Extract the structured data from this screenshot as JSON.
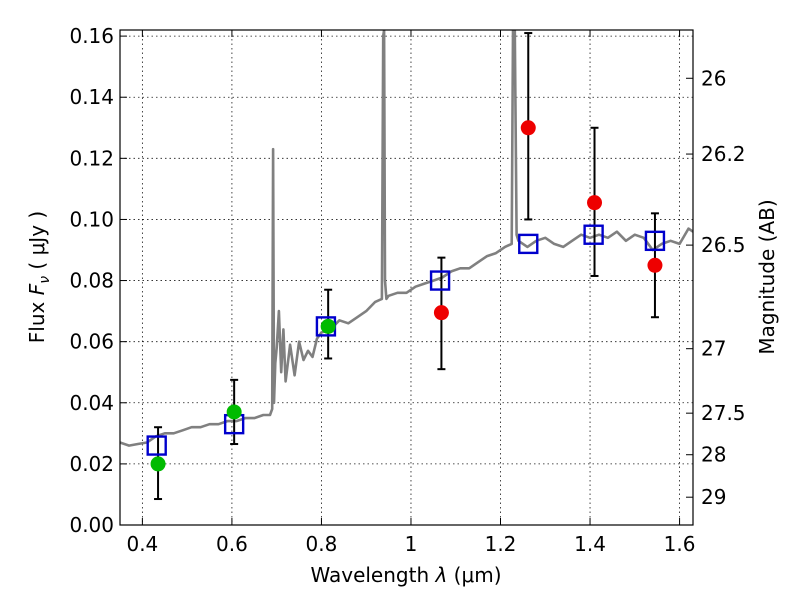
{
  "chart_data": {
    "type": "scatter",
    "title": "",
    "xlabel_main": "Wavelength  ",
    "xlabel_lambda": "λ",
    "xlabel_unit": " (μm)",
    "ylabel_flux": "Flux  ",
    "ylabel_f": "F",
    "ylabel_sub": "ν",
    "ylabel_unit": "  ( μJy )",
    "ylabel_right": "Magnitude (AB)",
    "xlim": [
      0.35,
      1.63
    ],
    "ylim": [
      0.0,
      0.162
    ],
    "grid": true,
    "x_ticks": [
      {
        "value": 0.4,
        "label": "0.4"
      },
      {
        "value": 0.6,
        "label": "0.6"
      },
      {
        "value": 0.8,
        "label": "0.8"
      },
      {
        "value": 1.0,
        "label": "1"
      },
      {
        "value": 1.2,
        "label": "1.2"
      },
      {
        "value": 1.4,
        "label": "1.4"
      },
      {
        "value": 1.6,
        "label": "1.6"
      }
    ],
    "y_ticks": [
      {
        "value": 0.0,
        "label": "0.00"
      },
      {
        "value": 0.02,
        "label": "0.02"
      },
      {
        "value": 0.04,
        "label": "0.04"
      },
      {
        "value": 0.06,
        "label": "0.06"
      },
      {
        "value": 0.08,
        "label": "0.08"
      },
      {
        "value": 0.1,
        "label": "0.10"
      },
      {
        "value": 0.12,
        "label": "0.12"
      },
      {
        "value": 0.14,
        "label": "0.14"
      },
      {
        "value": 0.16,
        "label": "0.16"
      }
    ],
    "right_ticks": [
      {
        "flux": 0.1462,
        "label": "26"
      },
      {
        "flux": 0.1214,
        "label": "26.2"
      },
      {
        "flux": 0.0916,
        "label": "26.5"
      },
      {
        "flux": 0.0577,
        "label": "27"
      },
      {
        "flux": 0.0366,
        "label": "27.5"
      },
      {
        "flux": 0.023,
        "label": "28"
      },
      {
        "flux": 0.0091,
        "label": "29"
      }
    ],
    "series": [
      {
        "name": "spectrum",
        "type": "line",
        "color": "#808080",
        "x": [
          0.35,
          0.37,
          0.39,
          0.41,
          0.43,
          0.45,
          0.47,
          0.49,
          0.51,
          0.53,
          0.55,
          0.57,
          0.59,
          0.61,
          0.63,
          0.65,
          0.67,
          0.685,
          0.69,
          0.692,
          0.694,
          0.697,
          0.7,
          0.705,
          0.71,
          0.715,
          0.72,
          0.73,
          0.74,
          0.75,
          0.76,
          0.77,
          0.78,
          0.79,
          0.8,
          0.82,
          0.84,
          0.86,
          0.88,
          0.9,
          0.92,
          0.935,
          0.938,
          0.94,
          0.942,
          0.945,
          0.95,
          0.97,
          0.99,
          1.01,
          1.03,
          1.05,
          1.07,
          1.09,
          1.11,
          1.13,
          1.15,
          1.17,
          1.19,
          1.21,
          1.225,
          1.228,
          1.232,
          1.236,
          1.24,
          1.26,
          1.28,
          1.3,
          1.32,
          1.34,
          1.36,
          1.38,
          1.4,
          1.42,
          1.44,
          1.46,
          1.48,
          1.5,
          1.52,
          1.54,
          1.56,
          1.58,
          1.6,
          1.62,
          1.63
        ],
        "y": [
          0.027,
          0.026,
          0.0265,
          0.027,
          0.029,
          0.03,
          0.03,
          0.031,
          0.032,
          0.032,
          0.033,
          0.033,
          0.034,
          0.034,
          0.035,
          0.035,
          0.036,
          0.036,
          0.038,
          0.123,
          0.04,
          0.053,
          0.058,
          0.07,
          0.05,
          0.064,
          0.047,
          0.059,
          0.049,
          0.06,
          0.054,
          0.057,
          0.055,
          0.061,
          0.063,
          0.064,
          0.067,
          0.066,
          0.068,
          0.07,
          0.073,
          0.074,
          0.16,
          0.162,
          0.08,
          0.074,
          0.075,
          0.076,
          0.076,
          0.078,
          0.079,
          0.08,
          0.081,
          0.083,
          0.084,
          0.084,
          0.086,
          0.088,
          0.089,
          0.091,
          0.092,
          0.162,
          0.162,
          0.095,
          0.093,
          0.091,
          0.093,
          0.094,
          0.092,
          0.091,
          0.093,
          0.095,
          0.094,
          0.095,
          0.094,
          0.096,
          0.093,
          0.095,
          0.094,
          0.09,
          0.092,
          0.093,
          0.092,
          0.097,
          0.096
        ]
      },
      {
        "name": "model-boxes",
        "type": "marker",
        "color": "#0000cc",
        "x": [
          0.432,
          0.605,
          0.81,
          1.065,
          1.262,
          1.408,
          1.545
        ],
        "y": [
          0.026,
          0.033,
          0.065,
          0.08,
          0.092,
          0.095,
          0.093
        ]
      },
      {
        "name": "green-points",
        "type": "marker",
        "color": "#00bb00",
        "x": [
          0.435,
          0.605,
          0.815
        ],
        "y": [
          0.02,
          0.037,
          0.065
        ],
        "err_low": [
          0.0115,
          0.0105,
          0.0105
        ],
        "err_high": [
          0.012,
          0.0105,
          0.012
        ]
      },
      {
        "name": "red-points",
        "type": "marker",
        "color": "#ee0000",
        "x": [
          1.068,
          1.262,
          1.41,
          1.545
        ],
        "y": [
          0.0695,
          0.13,
          0.1055,
          0.085
        ],
        "err_low": [
          0.0185,
          0.03,
          0.024,
          0.017
        ],
        "err_high": [
          0.018,
          0.031,
          0.0245,
          0.017
        ]
      }
    ]
  }
}
